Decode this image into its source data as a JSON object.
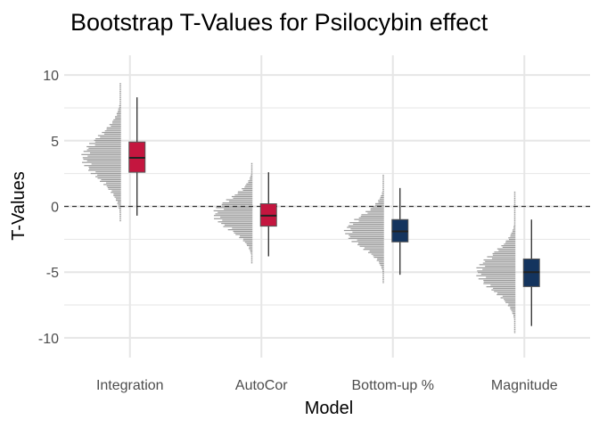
{
  "chart_data": {
    "type": "boxplot",
    "title": "Bootstrap T-Values for Psilocybin effect",
    "xlabel": "Model",
    "ylabel": "T-Values",
    "ylim": [
      -11.5,
      11.5
    ],
    "yticks": [
      10,
      5,
      0,
      -5,
      -10
    ],
    "reference_line": 0,
    "grid": true,
    "categories": [
      "Integration",
      "AutoCor",
      "Bottom-up %",
      "Magnitude"
    ],
    "boxes": [
      {
        "category": "Integration",
        "q1": 2.6,
        "median": 3.7,
        "q3": 4.9,
        "whisker_low": -0.7,
        "whisker_high": 8.3,
        "color": "#c4163f"
      },
      {
        "category": "AutoCor",
        "q1": -1.5,
        "median": -0.7,
        "q3": 0.2,
        "whisker_low": -3.8,
        "whisker_high": 2.6,
        "color": "#c4163f"
      },
      {
        "category": "Bottom-up %",
        "q1": -2.7,
        "median": -1.9,
        "q3": -1.0,
        "whisker_low": -5.2,
        "whisker_high": 1.4,
        "color": "#14345e"
      },
      {
        "category": "Magnitude",
        "q1": -6.1,
        "median": -5.0,
        "q3": -4.0,
        "whisker_low": -9.1,
        "whisker_high": -1.0,
        "color": "#14345e"
      }
    ],
    "distributions": [
      {
        "category": "Integration",
        "mean": 3.7,
        "sd": 1.6,
        "min": -1.1,
        "max": 9.4
      },
      {
        "category": "AutoCor",
        "mean": -0.6,
        "sd": 1.2,
        "min": -4.3,
        "max": 3.3
      },
      {
        "category": "Bottom-up %",
        "mean": -1.9,
        "sd": 1.2,
        "min": -5.8,
        "max": 2.4
      },
      {
        "category": "Magnitude",
        "mean": -5.0,
        "sd": 1.4,
        "min": -9.6,
        "max": 1.1
      }
    ],
    "colors": {
      "hist": "#9a9a9a",
      "grid": "#e6e6e6",
      "refline": "#333333",
      "whisker": "#1a1a1a",
      "median": "#222222"
    }
  }
}
